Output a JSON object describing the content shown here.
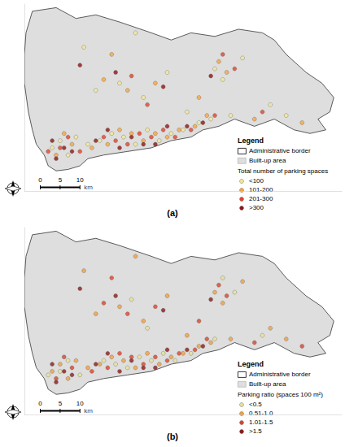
{
  "chart_data": [
    {
      "type": "scatter",
      "title": "(a)",
      "tick_labels": false,
      "xlim": [
        0,
        80
      ],
      "ylim": [
        0,
        52
      ],
      "legend_title": "Legend",
      "border_name": "Administrative border",
      "built_up_name": "Built-up area",
      "class_title": "Total number of parking spaces",
      "scale_bar": {
        "ticks": [
          0,
          5,
          10
        ],
        "unit": "km"
      },
      "border": [
        [
          2,
          50
        ],
        [
          8,
          51
        ],
        [
          13,
          48
        ],
        [
          18,
          49
        ],
        [
          24,
          47
        ],
        [
          32,
          44
        ],
        [
          37,
          42
        ],
        [
          42,
          44
        ],
        [
          48,
          43
        ],
        [
          54,
          45
        ],
        [
          60,
          44
        ],
        [
          63,
          42
        ],
        [
          66,
          38
        ],
        [
          71,
          33
        ],
        [
          75,
          30
        ],
        [
          78,
          26
        ],
        [
          77,
          22
        ],
        [
          74,
          20
        ],
        [
          76,
          17
        ],
        [
          72,
          16
        ],
        [
          68,
          17
        ],
        [
          63,
          20
        ],
        [
          58,
          18
        ],
        [
          53,
          20
        ],
        [
          49,
          18
        ],
        [
          45,
          17
        ],
        [
          42,
          15
        ],
        [
          37,
          14
        ],
        [
          32,
          12
        ],
        [
          26,
          11
        ],
        [
          20,
          10
        ],
        [
          16,
          9
        ],
        [
          14,
          7
        ],
        [
          11,
          6
        ],
        [
          8,
          5.6
        ],
        [
          6,
          7
        ],
        [
          5,
          10
        ],
        [
          3,
          13
        ],
        [
          2,
          17
        ],
        [
          1,
          22
        ],
        [
          0,
          30
        ],
        [
          0,
          38
        ],
        [
          0.4,
          44
        ],
        [
          2,
          50
        ]
      ],
      "series": [
        {
          "name": "<100",
          "color": "#f3e79b",
          "values": [
            [
              7,
              12
            ],
            [
              9,
              14
            ],
            [
              11,
              10
            ],
            [
              13,
              15
            ],
            [
              16,
              13
            ],
            [
              19,
              14
            ],
            [
              22,
              16
            ],
            [
              25,
              15
            ],
            [
              28,
              13
            ],
            [
              31,
              17
            ],
            [
              34,
              14
            ],
            [
              37,
              16
            ],
            [
              40,
              17
            ],
            [
              44,
              19
            ],
            [
              47,
              20
            ],
            [
              52,
              21
            ],
            [
              18,
              28
            ],
            [
              24,
              30
            ],
            [
              30,
              26
            ],
            [
              36,
              33
            ],
            [
              48,
              34
            ],
            [
              50,
              31
            ],
            [
              62,
              24
            ],
            [
              66,
              21
            ],
            [
              15,
              40
            ],
            [
              28,
              44
            ],
            [
              41,
              22
            ],
            [
              55,
              37
            ]
          ]
        },
        {
          "name": "101-200",
          "color": "#f5a742",
          "values": [
            [
              8,
              10
            ],
            [
              10,
              16
            ],
            [
              12,
              13
            ],
            [
              17,
              12
            ],
            [
              21,
              13
            ],
            [
              24,
              17
            ],
            [
              27,
              16
            ],
            [
              30,
              14
            ],
            [
              33,
              16
            ],
            [
              36,
              15
            ],
            [
              39,
              17
            ],
            [
              43,
              18
            ],
            [
              46,
              21
            ],
            [
              20,
              31
            ],
            [
              26,
              28
            ],
            [
              33,
              30
            ],
            [
              49,
              36
            ],
            [
              51,
              33
            ],
            [
              58,
              20
            ],
            [
              70,
              19
            ],
            [
              22,
              38
            ],
            [
              44,
              26
            ]
          ]
        },
        {
          "name": "201-300",
          "color": "#e0452b",
          "values": [
            [
              6,
              11
            ],
            [
              9,
              12
            ],
            [
              11,
              15
            ],
            [
              14,
              11
            ],
            [
              20,
              15
            ],
            [
              23,
              14
            ],
            [
              26,
              13
            ],
            [
              29,
              16
            ],
            [
              32,
              15
            ],
            [
              35,
              17
            ],
            [
              38,
              15
            ],
            [
              42,
              17
            ],
            [
              48,
              21
            ],
            [
              27,
              32
            ],
            [
              31,
              24
            ],
            [
              50,
              38
            ],
            [
              53,
              34
            ],
            [
              60,
              22
            ]
          ]
        },
        {
          "name": ">300",
          "color": "#8e1414",
          "values": [
            [
              7,
              14
            ],
            [
              8,
              9
            ],
            [
              10,
              12
            ],
            [
              12,
              11
            ],
            [
              18,
              14
            ],
            [
              21,
              17
            ],
            [
              24,
              12
            ],
            [
              27,
              15
            ],
            [
              30,
              13
            ],
            [
              33,
              13
            ],
            [
              36,
              18
            ],
            [
              41,
              18
            ],
            [
              45,
              19
            ],
            [
              23,
              33
            ],
            [
              35,
              29
            ],
            [
              47,
              32
            ],
            [
              14,
              35
            ]
          ]
        }
      ]
    },
    {
      "type": "scatter",
      "title": "(b)",
      "tick_labels": false,
      "xlim": [
        0,
        80
      ],
      "ylim": [
        0,
        52
      ],
      "legend_title": "Legend",
      "border_name": "Administrative border",
      "built_up_name": "Built-up area",
      "class_title": "Parking ratio (spaces 100 m²)",
      "scale_bar": {
        "ticks": [
          0,
          5,
          10
        ],
        "unit": "km"
      },
      "border": [
        [
          2,
          50
        ],
        [
          8,
          51
        ],
        [
          13,
          48
        ],
        [
          18,
          49
        ],
        [
          24,
          47
        ],
        [
          32,
          44
        ],
        [
          37,
          42
        ],
        [
          42,
          44
        ],
        [
          48,
          43
        ],
        [
          54,
          45
        ],
        [
          60,
          44
        ],
        [
          63,
          42
        ],
        [
          66,
          38
        ],
        [
          71,
          33
        ],
        [
          75,
          30
        ],
        [
          78,
          26
        ],
        [
          77,
          22
        ],
        [
          74,
          20
        ],
        [
          76,
          17
        ],
        [
          72,
          16
        ],
        [
          68,
          17
        ],
        [
          63,
          20
        ],
        [
          58,
          18
        ],
        [
          53,
          20
        ],
        [
          49,
          18
        ],
        [
          45,
          17
        ],
        [
          42,
          15
        ],
        [
          37,
          14
        ],
        [
          32,
          12
        ],
        [
          26,
          11
        ],
        [
          20,
          10
        ],
        [
          16,
          9
        ],
        [
          14,
          7
        ],
        [
          11,
          6
        ],
        [
          8,
          5.6
        ],
        [
          6,
          7
        ],
        [
          5,
          10
        ],
        [
          3,
          13
        ],
        [
          2,
          17
        ],
        [
          1,
          22
        ],
        [
          0,
          30
        ],
        [
          0,
          38
        ],
        [
          0.4,
          44
        ],
        [
          2,
          50
        ]
      ],
      "series": [
        {
          "name": "<0.5",
          "color": "#e6e29a",
          "values": [
            [
              6,
              11
            ],
            [
              9,
              12
            ],
            [
              11,
              15
            ],
            [
              14,
              11
            ],
            [
              20,
              15
            ],
            [
              23,
              14
            ],
            [
              26,
              13
            ],
            [
              29,
              16
            ],
            [
              32,
              15
            ],
            [
              35,
              17
            ],
            [
              38,
              15
            ],
            [
              42,
              17
            ],
            [
              48,
              21
            ],
            [
              27,
              32
            ],
            [
              31,
              24
            ],
            [
              50,
              38
            ],
            [
              53,
              34
            ],
            [
              60,
              22
            ]
          ]
        },
        {
          "name": "0.51-1.0",
          "color": "#f0a040",
          "values": [
            [
              7,
              12
            ],
            [
              9,
              14
            ],
            [
              11,
              10
            ],
            [
              13,
              15
            ],
            [
              16,
              13
            ],
            [
              19,
              14
            ],
            [
              22,
              16
            ],
            [
              25,
              15
            ],
            [
              28,
              13
            ],
            [
              31,
              17
            ],
            [
              34,
              14
            ],
            [
              37,
              16
            ],
            [
              40,
              17
            ],
            [
              44,
              19
            ],
            [
              47,
              20
            ],
            [
              52,
              21
            ],
            [
              18,
              28
            ],
            [
              24,
              30
            ],
            [
              30,
              26
            ],
            [
              36,
              33
            ],
            [
              48,
              34
            ],
            [
              50,
              31
            ],
            [
              62,
              24
            ],
            [
              66,
              21
            ],
            [
              15,
              40
            ],
            [
              28,
              44
            ],
            [
              41,
              22
            ],
            [
              55,
              37
            ]
          ]
        },
        {
          "name": "1.01-1.5",
          "color": "#d9452b",
          "values": [
            [
              8,
              10
            ],
            [
              10,
              16
            ],
            [
              12,
              13
            ],
            [
              17,
              12
            ],
            [
              21,
              13
            ],
            [
              24,
              17
            ],
            [
              27,
              16
            ],
            [
              30,
              14
            ],
            [
              33,
              16
            ],
            [
              36,
              15
            ],
            [
              39,
              17
            ],
            [
              43,
              18
            ],
            [
              46,
              21
            ],
            [
              20,
              31
            ],
            [
              26,
              28
            ],
            [
              33,
              30
            ],
            [
              49,
              36
            ],
            [
              51,
              33
            ],
            [
              58,
              20
            ],
            [
              70,
              19
            ],
            [
              22,
              38
            ],
            [
              44,
              26
            ]
          ]
        },
        {
          "name": ">1.5",
          "color": "#8b1a1a",
          "values": [
            [
              7,
              14
            ],
            [
              8,
              9
            ],
            [
              10,
              12
            ],
            [
              12,
              11
            ],
            [
              18,
              14
            ],
            [
              21,
              17
            ],
            [
              24,
              12
            ],
            [
              27,
              15
            ],
            [
              30,
              13
            ],
            [
              33,
              13
            ],
            [
              36,
              18
            ],
            [
              41,
              18
            ],
            [
              45,
              19
            ],
            [
              23,
              33
            ],
            [
              35,
              29
            ],
            [
              47,
              32
            ],
            [
              14,
              35
            ]
          ]
        }
      ]
    }
  ]
}
